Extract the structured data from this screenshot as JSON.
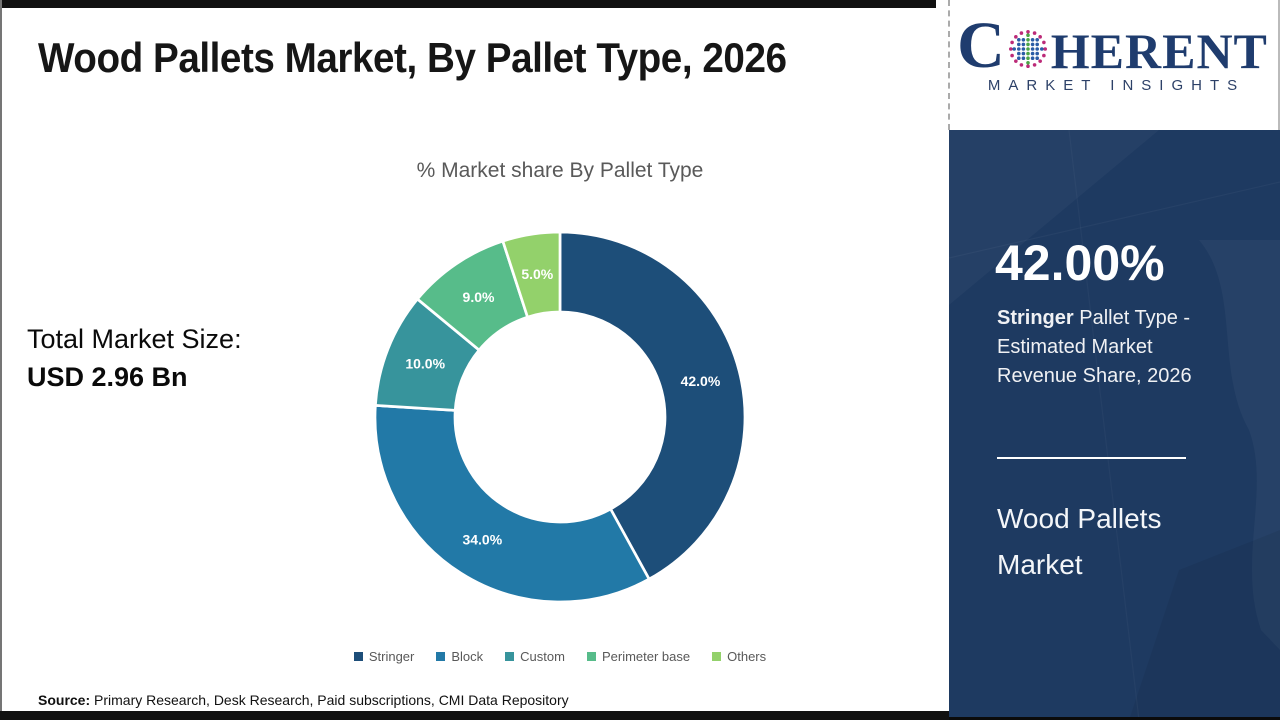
{
  "title": "Wood Pallets Market, By Pallet Type, 2026",
  "total_market": {
    "label": "Total Market Size:",
    "value": "USD 2.96 Bn"
  },
  "source": {
    "label": "Source:",
    "text": " Primary Research, Desk Research, Paid subscriptions, CMI Data Repository"
  },
  "logo": {
    "name_first_letter": "C",
    "name_rest": "HERENT",
    "tagline": "MARKET INSIGHTS",
    "navy": "#1f3c6e",
    "globe_colors": {
      "center": "#4ba546",
      "middle": "#2b5ca6",
      "outer": "#bc2a78"
    }
  },
  "right_panel": {
    "bg_color": "#1e3a61",
    "highlight_value": "42.00%",
    "highlight_bold": "Stringer",
    "highlight_rest": " Pallet Type - Estimated Market Revenue Share, 2026",
    "market_name": "Wood Pallets Market"
  },
  "chart_data": {
    "type": "pie",
    "donut": true,
    "title": "% Market share By Pallet Type",
    "categories": [
      "Stringer",
      "Block",
      "Custom",
      "Perimeter base",
      "Others"
    ],
    "values": [
      42.0,
      34.0,
      10.0,
      9.0,
      5.0
    ],
    "labels": [
      "42.0%",
      "34.0%",
      "10.0%",
      "9.0%",
      "5.0%"
    ],
    "colors": [
      "#1d4e79",
      "#2279a7",
      "#37949c",
      "#57bc8a",
      "#93d16b"
    ],
    "start_angle_deg": 0,
    "direction": "clockwise",
    "legend_position": "bottom"
  }
}
